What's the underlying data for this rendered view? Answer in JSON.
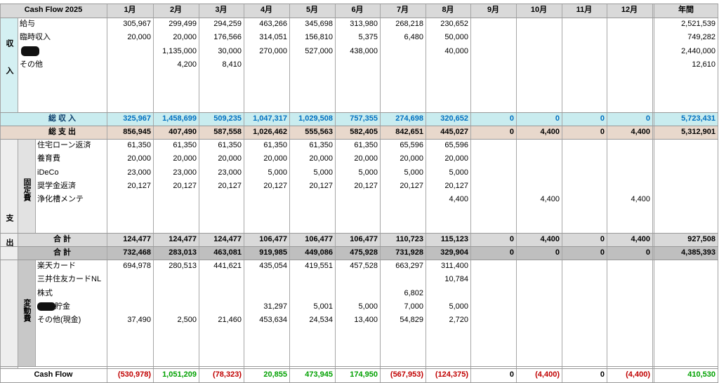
{
  "header": {
    "title": "Cash Flow 2025",
    "months": [
      "1月",
      "2月",
      "3月",
      "4月",
      "5月",
      "6月",
      "7月",
      "8月",
      "9月",
      "10月",
      "11月",
      "12月"
    ],
    "annual": "年間"
  },
  "income": {
    "group": "収入",
    "rows": [
      {
        "label": "給与",
        "values": [
          "305,967",
          "299,499",
          "294,259",
          "463,266",
          "345,698",
          "313,980",
          "268,218",
          "230,652",
          null,
          null,
          null,
          null
        ],
        "annual": "2,521,539"
      },
      {
        "label": "臨時収入",
        "values": [
          "20,000",
          "20,000",
          "176,566",
          "314,051",
          "156,810",
          "5,375",
          "6,480",
          "50,000",
          null,
          null,
          null,
          null
        ],
        "annual": "749,282"
      },
      {
        "label": null,
        "values": [
          null,
          "1,135,000",
          "30,000",
          "270,000",
          "527,000",
          "438,000",
          null,
          "40,000",
          null,
          null,
          null,
          null
        ],
        "annual": "2,440,000"
      },
      {
        "label": "その他",
        "values": [
          null,
          "4,200",
          "8,410",
          null,
          null,
          null,
          null,
          null,
          null,
          null,
          null,
          null
        ],
        "annual": "12,610"
      }
    ],
    "total": {
      "label": "総 収 入",
      "values": [
        "325,967",
        "1,458,699",
        "509,235",
        "1,047,317",
        "1,029,508",
        "757,355",
        "274,698",
        "320,652",
        "0",
        "0",
        "0",
        "0"
      ],
      "annual": "5,723,431"
    }
  },
  "expense": {
    "group": "支出",
    "total": {
      "label": "総 支 出",
      "values": [
        "856,945",
        "407,490",
        "587,558",
        "1,026,462",
        "555,563",
        "582,405",
        "842,651",
        "445,027",
        "0",
        "4,400",
        "0",
        "4,400"
      ],
      "annual": "5,312,901"
    },
    "fixed": {
      "group": "固定費",
      "rows": [
        {
          "label": "住宅ローン返済",
          "values": [
            "61,350",
            "61,350",
            "61,350",
            "61,350",
            "61,350",
            "61,350",
            "65,596",
            "65,596",
            null,
            null,
            null,
            null
          ],
          "annual": null
        },
        {
          "label": "養育費",
          "values": [
            "20,000",
            "20,000",
            "20,000",
            "20,000",
            "20,000",
            "20,000",
            "20,000",
            "20,000",
            null,
            null,
            null,
            null
          ],
          "annual": null
        },
        {
          "label": "iDeCo",
          "values": [
            "23,000",
            "23,000",
            "23,000",
            "5,000",
            "5,000",
            "5,000",
            "5,000",
            "5,000",
            null,
            null,
            null,
            null
          ],
          "annual": null
        },
        {
          "label": "奨学金返済",
          "values": [
            "20,127",
            "20,127",
            "20,127",
            "20,127",
            "20,127",
            "20,127",
            "20,127",
            "20,127",
            null,
            null,
            null,
            null
          ],
          "annual": null
        },
        {
          "label": "浄化槽メンテ",
          "values": [
            null,
            null,
            null,
            null,
            null,
            null,
            null,
            "4,400",
            null,
            "4,400",
            null,
            "4,400"
          ],
          "annual": null
        }
      ],
      "total": {
        "label": "合 計",
        "values": [
          "124,477",
          "124,477",
          "124,477",
          "106,477",
          "106,477",
          "106,477",
          "110,723",
          "115,123",
          "0",
          "4,400",
          "0",
          "4,400"
        ],
        "annual": "927,508"
      }
    },
    "variable": {
      "group": "変動費",
      "total": {
        "label": "合 計",
        "values": [
          "732,468",
          "283,013",
          "463,081",
          "919,985",
          "449,086",
          "475,928",
          "731,928",
          "329,904",
          "0",
          "0",
          "0",
          "0"
        ],
        "annual": "4,385,393"
      },
      "rows": [
        {
          "label": "楽天カード",
          "values": [
            "694,978",
            "280,513",
            "441,621",
            "435,054",
            "419,551",
            "457,528",
            "663,297",
            "311,400",
            null,
            null,
            null,
            null
          ],
          "annual": null
        },
        {
          "label": "三井住友カードNL",
          "values": [
            null,
            null,
            null,
            null,
            null,
            null,
            null,
            "10,784",
            null,
            null,
            null,
            null
          ],
          "annual": null
        },
        {
          "label": "株式",
          "values": [
            null,
            null,
            null,
            null,
            null,
            null,
            "6,802",
            null,
            null,
            null,
            null,
            null
          ],
          "annual": null
        },
        {
          "label": "貯金",
          "values": [
            null,
            null,
            null,
            "31,297",
            "5,001",
            "5,000",
            "7,000",
            "5,000",
            null,
            null,
            null,
            null
          ],
          "annual": null
        },
        {
          "label": "その他(現金)",
          "values": [
            "37,490",
            "2,500",
            "21,460",
            "453,634",
            "24,534",
            "13,400",
            "54,829",
            "2,720",
            null,
            null,
            null,
            null
          ],
          "annual": null
        }
      ]
    }
  },
  "cash_flow": {
    "label": "Cash Flow",
    "values": [
      "(530,978)",
      "1,051,209",
      "(78,323)",
      "20,855",
      "473,945",
      "174,950",
      "(567,953)",
      "(124,375)",
      "0",
      "(4,400)",
      "0",
      "(4,400)"
    ],
    "annual": "410,530"
  }
}
